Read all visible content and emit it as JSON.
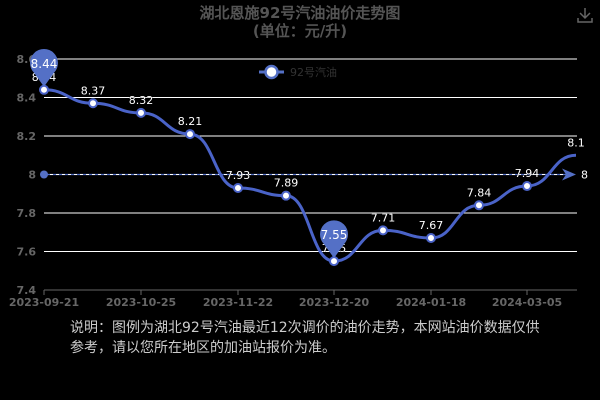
{
  "header": {
    "title": "湖北恩施92号汽油油价走势图",
    "subtitle": "(单位：元/升)",
    "download_icon": "download-icon"
  },
  "legend": {
    "label": "92号汽油"
  },
  "note": "说明：图例为湖北92号汽油最近12次调价的油价走势，本网站油价数据仅供参考，请以您所在地区的加油站报价为准。",
  "colors": {
    "line": "#4a63c8",
    "marker": "#5470c6",
    "grid": "#ffffff",
    "axis_text": "#666666"
  },
  "chart_data": {
    "type": "line",
    "title": "湖北恩施92号汽油油价走势图",
    "subtitle": "(单位：元/升)",
    "xlabel": "",
    "ylabel": "",
    "ylim": [
      7.4,
      8.6
    ],
    "yticks": [
      7.4,
      7.6,
      7.8,
      8,
      8.2,
      8.4,
      8.6
    ],
    "xtick_labels": [
      "2023-09-21",
      "2023-10-25",
      "2023-11-22",
      "2023-12-20",
      "2024-01-18",
      "2024-03-05"
    ],
    "legend": [
      "92号汽油"
    ],
    "grid": true,
    "series": [
      {
        "name": "92号汽油",
        "values": [
          8.44,
          8.37,
          8.32,
          8.21,
          7.93,
          7.89,
          7.55,
          7.71,
          7.67,
          7.84,
          7.94,
          8.1
        ]
      }
    ],
    "mark_points": {
      "max": 8.44,
      "min": 7.55
    },
    "mark_line": {
      "average": 8
    }
  },
  "labels": {
    "max_pin": "8.44",
    "min_pin": "7.55",
    "avg": "8",
    "last": "8.1"
  }
}
